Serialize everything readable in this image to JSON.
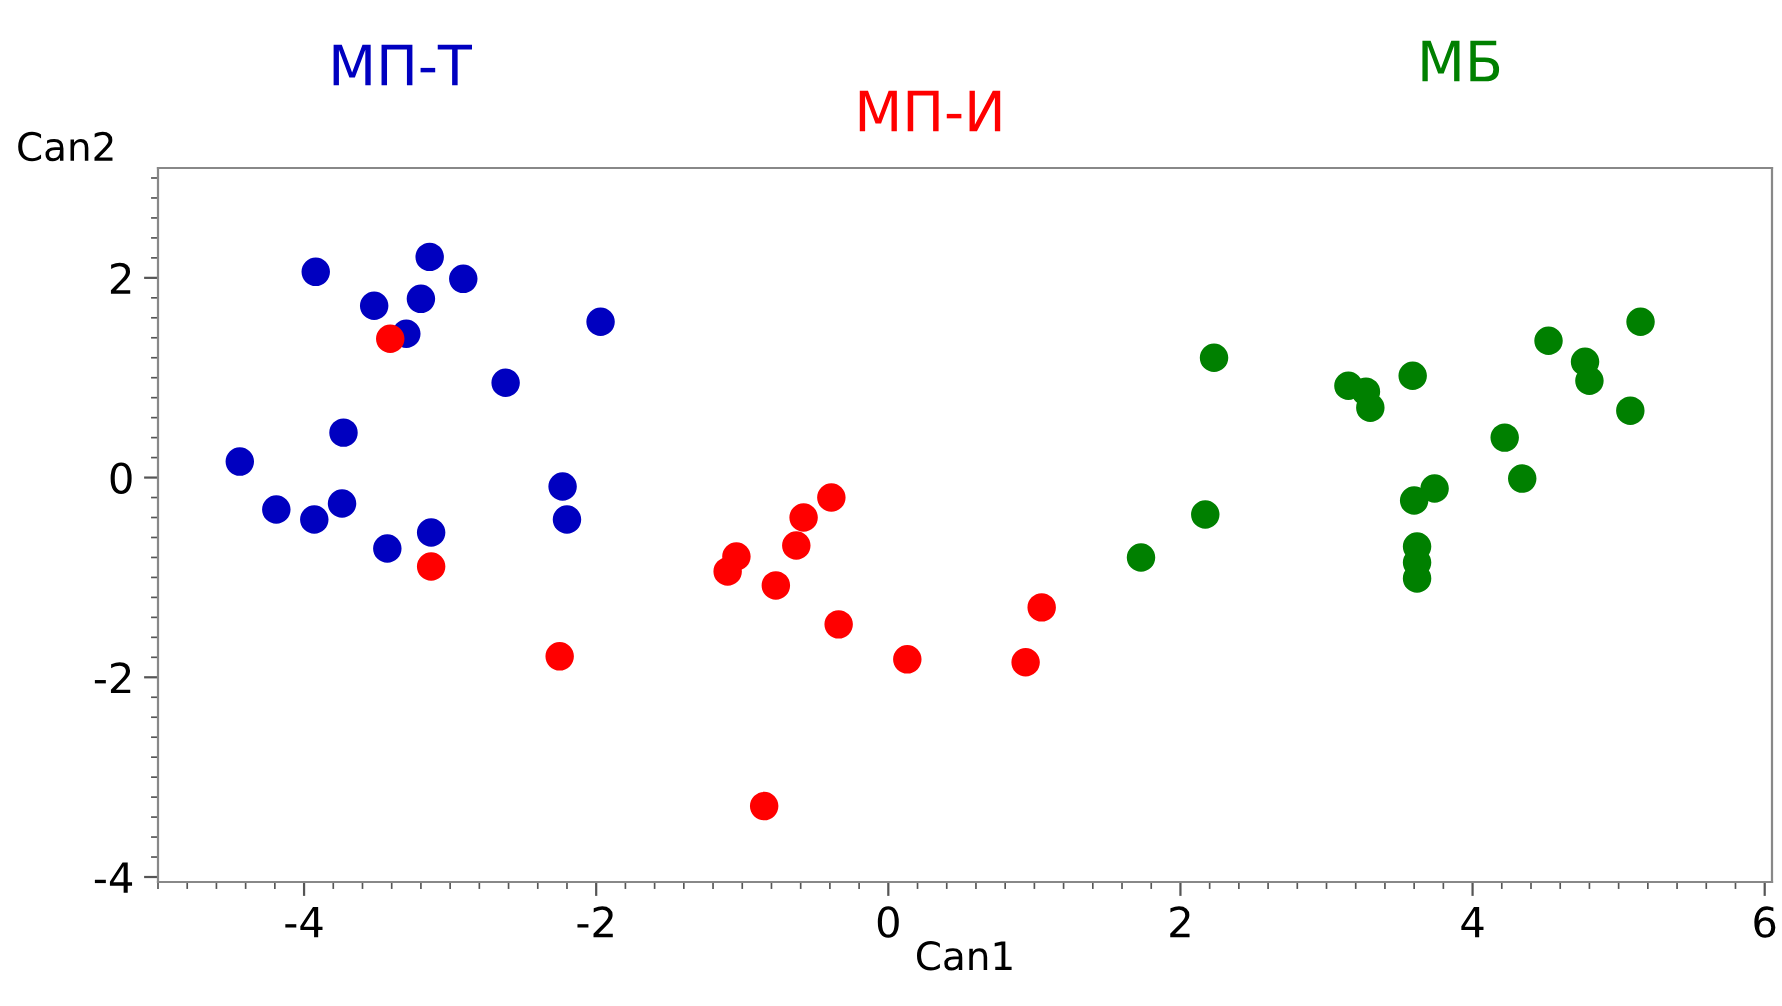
{
  "chart_data": {
    "type": "scatter",
    "xlabel": "Can1",
    "ylabel": "Can2",
    "xlim": [
      -5,
      6.05
    ],
    "ylim": [
      -4.05,
      3.1
    ],
    "xticks": [
      -4,
      -2,
      0,
      2,
      4,
      6
    ],
    "yticks": [
      -4,
      -2,
      0,
      2
    ],
    "grid": false,
    "legend": false,
    "marker": "circle",
    "series": [
      {
        "name": "МП-Т",
        "color": "#0000c0",
        "x": [
          -3.92,
          -3.14,
          -2.91,
          -3.52,
          -3.2,
          -3.3,
          -1.97,
          -2.62,
          -3.73,
          -4.44,
          -4.19,
          -3.93,
          -3.74,
          -3.43,
          -3.13,
          -2.23,
          -2.2
        ],
        "values": [
          2.06,
          2.21,
          1.99,
          1.72,
          1.79,
          1.44,
          1.56,
          0.95,
          0.45,
          0.16,
          -0.32,
          -0.42,
          -0.26,
          -0.71,
          -0.55,
          -0.09,
          -0.42
        ]
      },
      {
        "name": "МП-И",
        "color": "#ff0000",
        "x": [
          -3.41,
          -3.13,
          -2.25,
          -1.04,
          -1.1,
          -0.77,
          -0.63,
          -0.58,
          -0.39,
          -0.34,
          0.13,
          0.94,
          1.05,
          -0.85
        ],
        "values": [
          1.39,
          -0.89,
          -1.79,
          -0.79,
          -0.94,
          -1.08,
          -0.68,
          -0.4,
          -0.2,
          -1.47,
          -1.82,
          -1.85,
          -1.3,
          -3.29
        ]
      },
      {
        "name": "МБ",
        "color": "#008000",
        "x": [
          2.23,
          2.17,
          1.73,
          3.15,
          3.27,
          3.3,
          3.59,
          3.6,
          3.74,
          3.62,
          3.62,
          3.62,
          4.22,
          4.34,
          4.52,
          4.77,
          4.8,
          5.08,
          5.15
        ],
        "values": [
          1.2,
          -0.37,
          -0.8,
          0.92,
          0.86,
          0.7,
          1.02,
          -0.23,
          -0.11,
          -0.69,
          -0.85,
          -1.01,
          0.4,
          -0.01,
          1.37,
          1.16,
          0.97,
          0.67,
          1.56
        ]
      }
    ]
  }
}
